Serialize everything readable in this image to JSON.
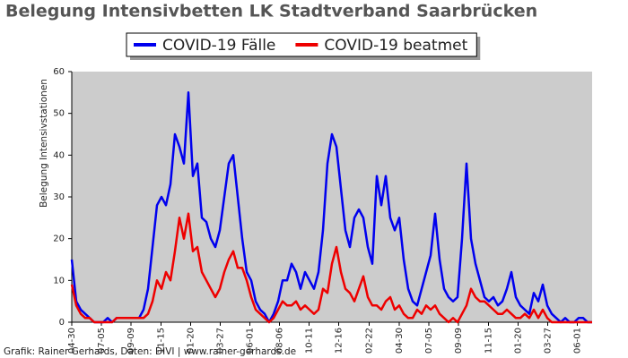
{
  "chart_data": {
    "type": "line",
    "title": "Belegung Intensivbetten LK Stadtverband Saarbrücken",
    "ylabel": "Belegung Intensivstationen",
    "footer": "Grafik: Rainer Gerhards, Daten: DIVI | www.rainer-gerhards.de",
    "x": [
      0,
      10,
      20,
      30,
      40,
      50,
      60,
      70,
      80,
      90,
      100,
      110,
      120,
      130,
      140,
      150,
      160,
      170,
      180,
      190,
      200,
      210,
      220,
      230,
      240,
      250,
      260,
      270,
      280,
      290,
      300,
      310,
      320,
      330,
      340,
      350,
      360,
      370,
      380,
      390,
      400,
      410,
      420,
      430,
      440,
      450,
      460,
      470,
      480,
      490,
      500,
      510,
      520,
      530,
      540,
      550,
      560,
      570,
      580,
      590,
      600,
      610,
      620,
      630,
      640,
      650,
      660,
      670,
      680,
      690,
      700,
      710,
      720,
      730,
      740,
      750,
      760,
      770,
      780,
      790,
      800,
      810,
      820,
      830,
      840,
      850,
      860,
      870,
      880,
      890,
      900,
      910,
      920,
      930,
      940,
      950,
      960,
      970,
      980,
      990,
      1000,
      1010,
      1020,
      1030,
      1040,
      1050,
      1060,
      1070,
      1080,
      1090,
      1100,
      1110,
      1120,
      1130,
      1140,
      1150,
      1160
    ],
    "series": [
      {
        "name": "COVID-19 Fälle",
        "color": "#0000ee",
        "values": [
          15,
          5,
          3,
          2,
          1,
          0,
          0,
          0,
          1,
          0,
          1,
          1,
          1,
          1,
          1,
          1,
          3,
          8,
          18,
          28,
          30,
          28,
          33,
          45,
          42,
          38,
          55,
          35,
          38,
          25,
          24,
          20,
          18,
          22,
          30,
          38,
          40,
          30,
          20,
          12,
          10,
          5,
          3,
          2,
          0,
          2,
          5,
          10,
          10,
          14,
          12,
          8,
          12,
          10,
          8,
          12,
          22,
          38,
          45,
          42,
          32,
          22,
          18,
          25,
          27,
          25,
          18,
          14,
          35,
          28,
          35,
          25,
          22,
          25,
          15,
          8,
          5,
          4,
          8,
          12,
          16,
          26,
          15,
          8,
          6,
          5,
          6,
          20,
          38,
          20,
          14,
          10,
          6,
          5,
          6,
          4,
          5,
          8,
          12,
          6,
          4,
          3,
          2,
          7,
          5,
          9,
          4,
          2,
          1,
          0,
          1,
          0,
          0,
          1,
          1,
          0,
          0
        ]
      },
      {
        "name": "COVID-19 beatmet",
        "color": "#ee0000",
        "values": [
          9,
          4,
          2,
          1,
          1,
          0,
          0,
          0,
          0,
          0,
          1,
          1,
          1,
          1,
          1,
          1,
          1,
          2,
          5,
          10,
          8,
          12,
          10,
          17,
          25,
          20,
          26,
          17,
          18,
          12,
          10,
          8,
          6,
          8,
          12,
          15,
          17,
          13,
          13,
          10,
          6,
          3,
          2,
          1,
          0,
          1,
          3,
          5,
          4,
          4,
          5,
          3,
          4,
          3,
          2,
          3,
          8,
          7,
          14,
          18,
          12,
          8,
          7,
          5,
          8,
          11,
          6,
          4,
          4,
          3,
          5,
          6,
          3,
          4,
          2,
          1,
          1,
          3,
          2,
          4,
          3,
          4,
          2,
          1,
          0,
          1,
          0,
          2,
          4,
          8,
          6,
          5,
          5,
          4,
          3,
          2,
          2,
          3,
          2,
          1,
          1,
          2,
          1,
          3,
          1,
          3,
          1,
          0,
          0,
          0,
          0,
          0,
          0,
          0,
          0,
          0,
          0
        ]
      }
    ],
    "xlim": [
      0,
      1160
    ],
    "xticks": [
      {
        "value": 0,
        "label": "04-30"
      },
      {
        "value": 66,
        "label": "07-05"
      },
      {
        "value": 132,
        "label": "09-09"
      },
      {
        "value": 199,
        "label": "11-15"
      },
      {
        "value": 265,
        "label": "01-20"
      },
      {
        "value": 331,
        "label": "03-27"
      },
      {
        "value": 397,
        "label": "06-01"
      },
      {
        "value": 463,
        "label": "08-06"
      },
      {
        "value": 529,
        "label": "10-11"
      },
      {
        "value": 595,
        "label": "12-16"
      },
      {
        "value": 663,
        "label": "02-22"
      },
      {
        "value": 730,
        "label": "04-30"
      },
      {
        "value": 796,
        "label": "07-05"
      },
      {
        "value": 862,
        "label": "09-09"
      },
      {
        "value": 929,
        "label": "11-15"
      },
      {
        "value": 995,
        "label": "01-20"
      },
      {
        "value": 1061,
        "label": "03-27"
      },
      {
        "value": 1127,
        "label": "06-01"
      }
    ],
    "ylim": [
      0,
      60
    ],
    "yticks": [
      0,
      10,
      20,
      30,
      40,
      50,
      60
    ],
    "background": "#cccccc"
  }
}
